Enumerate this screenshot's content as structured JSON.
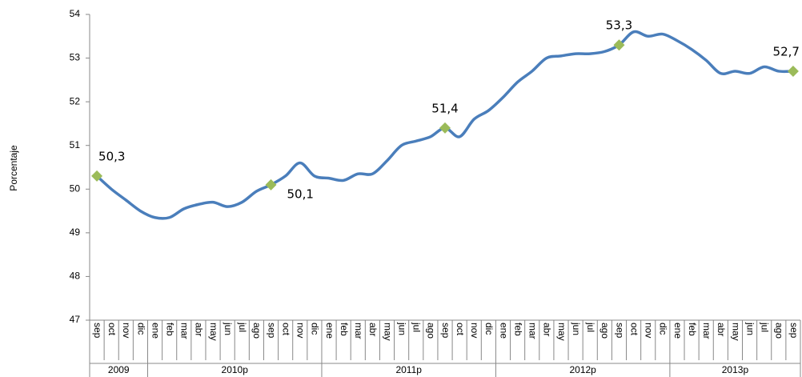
{
  "chart_data": {
    "type": "line",
    "y_label": "Porcentaje",
    "category_groups": [
      {
        "name": "2009",
        "categories": [
          "sep",
          "oct",
          "nov",
          "dic"
        ]
      },
      {
        "name": "2010p",
        "categories": [
          "ene",
          "feb",
          "mar",
          "abr",
          "may",
          "jun",
          "jul",
          "ago",
          "sep",
          "oct",
          "nov",
          "dic"
        ]
      },
      {
        "name": "2011p",
        "categories": [
          "ene",
          "feb",
          "mar",
          "abr",
          "may",
          "jun",
          "jul",
          "ago",
          "sep",
          "oct",
          "nov",
          "dic"
        ]
      },
      {
        "name": "2012p",
        "categories": [
          "ene",
          "feb",
          "mar",
          "abr",
          "may",
          "jun",
          "jul",
          "ago",
          "sep",
          "oct",
          "nov",
          "dic"
        ]
      },
      {
        "name": "2013p",
        "categories": [
          "ene",
          "feb",
          "mar",
          "abr",
          "may",
          "jun",
          "jul",
          "ago",
          "sep"
        ]
      }
    ],
    "values": [
      50.3,
      50.0,
      49.75,
      49.5,
      49.35,
      49.35,
      49.55,
      49.65,
      49.7,
      49.6,
      49.7,
      49.95,
      50.1,
      50.3,
      50.6,
      50.3,
      50.25,
      50.2,
      50.35,
      50.35,
      50.65,
      51.0,
      51.1,
      51.2,
      51.4,
      51.2,
      51.6,
      51.8,
      52.1,
      52.45,
      52.7,
      53.0,
      53.05,
      53.1,
      53.1,
      53.15,
      53.3,
      53.6,
      53.5,
      53.55,
      53.4,
      53.2,
      52.95,
      52.65,
      52.7,
      52.65,
      52.8,
      52.7,
      52.7
    ],
    "value_labels": [
      "50,3",
      null,
      null,
      null,
      null,
      null,
      null,
      null,
      null,
      null,
      null,
      null,
      "50,1",
      null,
      null,
      null,
      null,
      null,
      null,
      null,
      null,
      null,
      null,
      null,
      "51,4",
      null,
      null,
      null,
      null,
      null,
      null,
      null,
      null,
      null,
      null,
      null,
      "53,3",
      null,
      null,
      null,
      null,
      null,
      null,
      null,
      null,
      null,
      null,
      null,
      "52,7"
    ],
    "color": "#4a7ebb",
    "marker_color": "#9bbb59",
    "ylim": [
      47,
      54
    ],
    "yticks": [
      47,
      48,
      49,
      50,
      51,
      52,
      53,
      54
    ],
    "grid": false
  }
}
